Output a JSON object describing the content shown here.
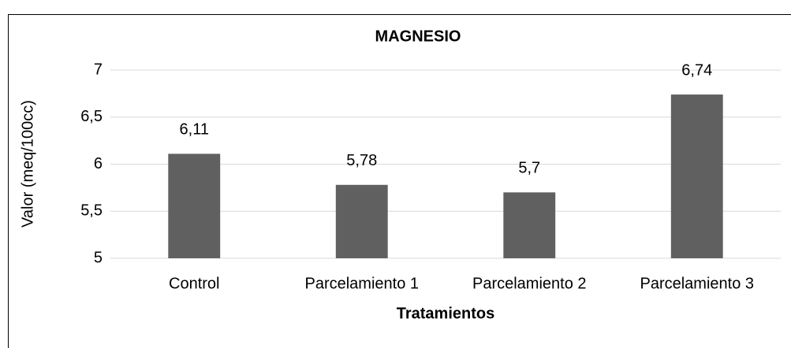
{
  "chart_data": {
    "type": "bar",
    "title": "MAGNESIO",
    "x_label": "Tratamientos",
    "y_label": "Valor (meq/100cc)",
    "categories": [
      "Control",
      "Parcelamiento 1",
      "Parcelamiento 2",
      "Parcelamiento 3"
    ],
    "values": [
      6.11,
      5.78,
      5.7,
      6.74
    ],
    "value_labels": [
      "6,11",
      "5,78",
      "5,7",
      "6,74"
    ],
    "color": "#606060",
    "ylim": [
      5,
      7
    ],
    "yticks": [
      5,
      {
        "value": 5.5,
        "label": "5,5"
      },
      6,
      {
        "value": 6.5,
        "label": "6,5"
      },
      7
    ],
    "grid": true
  }
}
